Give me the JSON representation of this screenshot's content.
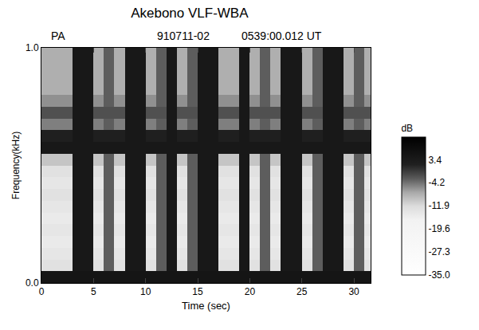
{
  "chart_data": {
    "type": "heatmap",
    "title": "Akebono VLF-WBA",
    "annotations": [
      {
        "text": "PA"
      },
      {
        "text": "910711-02"
      },
      {
        "text": "0539:00.012 UT"
      }
    ],
    "x_label": "Time (sec)",
    "y_label": "Frequency(kHz)",
    "xlim": [
      0,
      31.6
    ],
    "ylim": [
      0,
      1
    ],
    "xticks": [
      0,
      5,
      10,
      15,
      20,
      25,
      30
    ],
    "yticks": [
      {
        "value": 0,
        "label": "0.0"
      },
      {
        "value": 1,
        "label": "1.0"
      }
    ],
    "x": [
      0.5,
      1.5,
      2.5,
      3.5,
      4.5,
      5.5,
      6.5,
      7.5,
      8.5,
      9.5,
      10.5,
      11.5,
      12.5,
      13.5,
      14.5,
      15.5,
      16.5,
      17.5,
      18.5,
      19.5,
      20.5,
      21.5,
      22.5,
      23.5,
      24.5,
      25.5,
      26.5,
      27.5,
      28.5,
      29.5,
      30.5,
      31.5
    ],
    "y": [
      0.025,
      0.075,
      0.125,
      0.175,
      0.225,
      0.275,
      0.325,
      0.375,
      0.425,
      0.475,
      0.525,
      0.575,
      0.625,
      0.675,
      0.725,
      0.775,
      0.825,
      0.875,
      0.925,
      0.975
    ],
    "z": [
      [
        5,
        5,
        5,
        5,
        5,
        5,
        5,
        5,
        5,
        5,
        5,
        5,
        5,
        5,
        5,
        5,
        5,
        5,
        5,
        5,
        5,
        5,
        5,
        5,
        5,
        5,
        5,
        5,
        5,
        5,
        5,
        5
      ],
      [
        -13,
        -13,
        -13,
        4,
        4,
        -13,
        -3,
        -13,
        4,
        4,
        -13,
        -3,
        4,
        -13,
        -3,
        4,
        4,
        -13,
        -13,
        4,
        -13,
        -3,
        -13,
        4,
        4,
        -13,
        -3,
        4,
        4,
        -13,
        -3,
        -13
      ],
      [
        -14,
        -14,
        -14,
        4,
        4,
        -14,
        -3,
        -14,
        4,
        4,
        -14,
        -3,
        4,
        -14,
        -3,
        4,
        4,
        -14,
        -14,
        4,
        -14,
        -3,
        -14,
        4,
        4,
        -14,
        -3,
        4,
        4,
        -14,
        -3,
        -14
      ],
      [
        -15,
        -15,
        -15,
        4,
        4,
        -15,
        -3,
        -15,
        4,
        4,
        -15,
        -3,
        4,
        -15,
        -3,
        4,
        4,
        -15,
        -15,
        4,
        -15,
        -3,
        -15,
        4,
        4,
        -15,
        -3,
        4,
        4,
        -15,
        -3,
        -15
      ],
      [
        -14,
        -14,
        -14,
        4,
        4,
        -14,
        -3,
        -14,
        4,
        4,
        -14,
        -3,
        4,
        -14,
        -3,
        4,
        4,
        -14,
        -14,
        4,
        -14,
        -3,
        -14,
        4,
        4,
        -14,
        -3,
        4,
        4,
        -14,
        -3,
        -14
      ],
      [
        -15,
        -15,
        -15,
        4,
        4,
        -15,
        -3,
        -15,
        4,
        4,
        -15,
        -3,
        4,
        -15,
        -3,
        4,
        4,
        -15,
        -15,
        4,
        -15,
        -3,
        -15,
        4,
        4,
        -15,
        -3,
        4,
        4,
        -15,
        -3,
        -15
      ],
      [
        -14,
        -14,
        -14,
        4,
        4,
        -14,
        -3,
        -14,
        4,
        4,
        -14,
        -3,
        4,
        -14,
        -3,
        4,
        4,
        -14,
        -14,
        4,
        -14,
        -3,
        -14,
        4,
        4,
        -14,
        -3,
        4,
        4,
        -14,
        -3,
        -14
      ],
      [
        -13,
        -13,
        -13,
        4,
        4,
        -13,
        -3,
        -13,
        4,
        4,
        -13,
        -3,
        4,
        -13,
        -3,
        4,
        4,
        -13,
        -13,
        4,
        -13,
        -3,
        -13,
        4,
        4,
        -13,
        -3,
        4,
        4,
        -13,
        -3,
        -13
      ],
      [
        -14,
        -14,
        -14,
        4,
        4,
        -14,
        -3,
        -14,
        4,
        4,
        -14,
        -3,
        4,
        -14,
        -3,
        4,
        4,
        -14,
        -14,
        4,
        -14,
        -3,
        -14,
        4,
        4,
        -14,
        -3,
        4,
        4,
        -14,
        -3,
        -14
      ],
      [
        -13,
        -13,
        -13,
        4,
        4,
        -13,
        -3,
        -13,
        4,
        4,
        -13,
        -3,
        4,
        -13,
        -3,
        4,
        4,
        -13,
        -13,
        4,
        -13,
        -3,
        -13,
        4,
        4,
        -13,
        -3,
        4,
        4,
        -13,
        -3,
        -13
      ],
      [
        -10,
        -10,
        -10,
        4,
        4,
        -10,
        -3,
        -10,
        4,
        4,
        -10,
        -3,
        4,
        -10,
        -3,
        4,
        4,
        -10,
        -10,
        4,
        -10,
        -3,
        -10,
        4,
        4,
        -10,
        -3,
        4,
        4,
        -10,
        -3,
        -10
      ],
      [
        4,
        4,
        4,
        4,
        4,
        4,
        4,
        4,
        4,
        4,
        4,
        4,
        4,
        4,
        4,
        4,
        4,
        4,
        4,
        4,
        4,
        4,
        4,
        4,
        4,
        4,
        4,
        4,
        4,
        4,
        4,
        4
      ],
      [
        2,
        2,
        2,
        4,
        4,
        2,
        2,
        2,
        4,
        4,
        2,
        2,
        4,
        2,
        2,
        4,
        4,
        2,
        2,
        4,
        2,
        2,
        2,
        4,
        4,
        2,
        2,
        4,
        4,
        2,
        2,
        2
      ],
      [
        -5,
        -5,
        -5,
        4,
        4,
        -5,
        -3,
        -5,
        4,
        4,
        -5,
        -3,
        4,
        -5,
        -3,
        4,
        4,
        -5,
        -5,
        4,
        -5,
        -3,
        -5,
        4,
        4,
        -5,
        -3,
        4,
        4,
        -5,
        -3,
        -5
      ],
      [
        -2,
        -2,
        -2,
        4,
        4,
        -2,
        -2,
        -2,
        4,
        4,
        -2,
        -2,
        4,
        -2,
        -2,
        4,
        4,
        -2,
        -2,
        4,
        -2,
        -2,
        -2,
        4,
        4,
        -2,
        -2,
        4,
        4,
        -2,
        -2,
        -2
      ],
      [
        -6,
        -6,
        -6,
        4,
        4,
        -6,
        -3,
        -6,
        4,
        4,
        -6,
        -3,
        4,
        -6,
        -3,
        4,
        4,
        -6,
        -6,
        4,
        -6,
        -3,
        -6,
        4,
        4,
        -6,
        -3,
        4,
        4,
        -6,
        -3,
        -6
      ],
      [
        -8,
        -8,
        -8,
        4,
        4,
        -8,
        -3,
        -8,
        4,
        4,
        -8,
        -3,
        4,
        -8,
        -3,
        4,
        4,
        -8,
        -8,
        4,
        -8,
        -3,
        -8,
        4,
        4,
        -8,
        -3,
        4,
        4,
        -8,
        -3,
        -8
      ],
      [
        -8,
        -8,
        -8,
        4,
        4,
        -8,
        -3,
        -8,
        4,
        4,
        -8,
        -3,
        4,
        -8,
        -3,
        4,
        4,
        -8,
        -8,
        4,
        -8,
        -3,
        -8,
        4,
        4,
        -8,
        -3,
        4,
        4,
        -8,
        -3,
        -8
      ],
      [
        -8,
        -8,
        -8,
        4,
        4,
        -8,
        -3,
        -8,
        4,
        4,
        -8,
        -3,
        4,
        -8,
        -3,
        4,
        4,
        -8,
        -8,
        4,
        -8,
        -3,
        -8,
        4,
        4,
        -8,
        -3,
        4,
        4,
        -8,
        -3,
        -8
      ],
      [
        -8,
        -8,
        -8,
        4,
        4,
        -8,
        -3,
        -8,
        4,
        4,
        -8,
        -3,
        4,
        -8,
        -3,
        4,
        4,
        -8,
        -8,
        4,
        -8,
        -3,
        -8,
        4,
        4,
        -8,
        -3,
        4,
        4,
        -8,
        -3,
        -8
      ]
    ],
    "colorbar": {
      "title": "dB",
      "range": [
        -35,
        11
      ],
      "ticks": [
        3.4,
        -4.2,
        -11.9,
        -19.6,
        -27.3,
        {
          "value": -35,
          "label": "-35.0"
        }
      ]
    }
  }
}
